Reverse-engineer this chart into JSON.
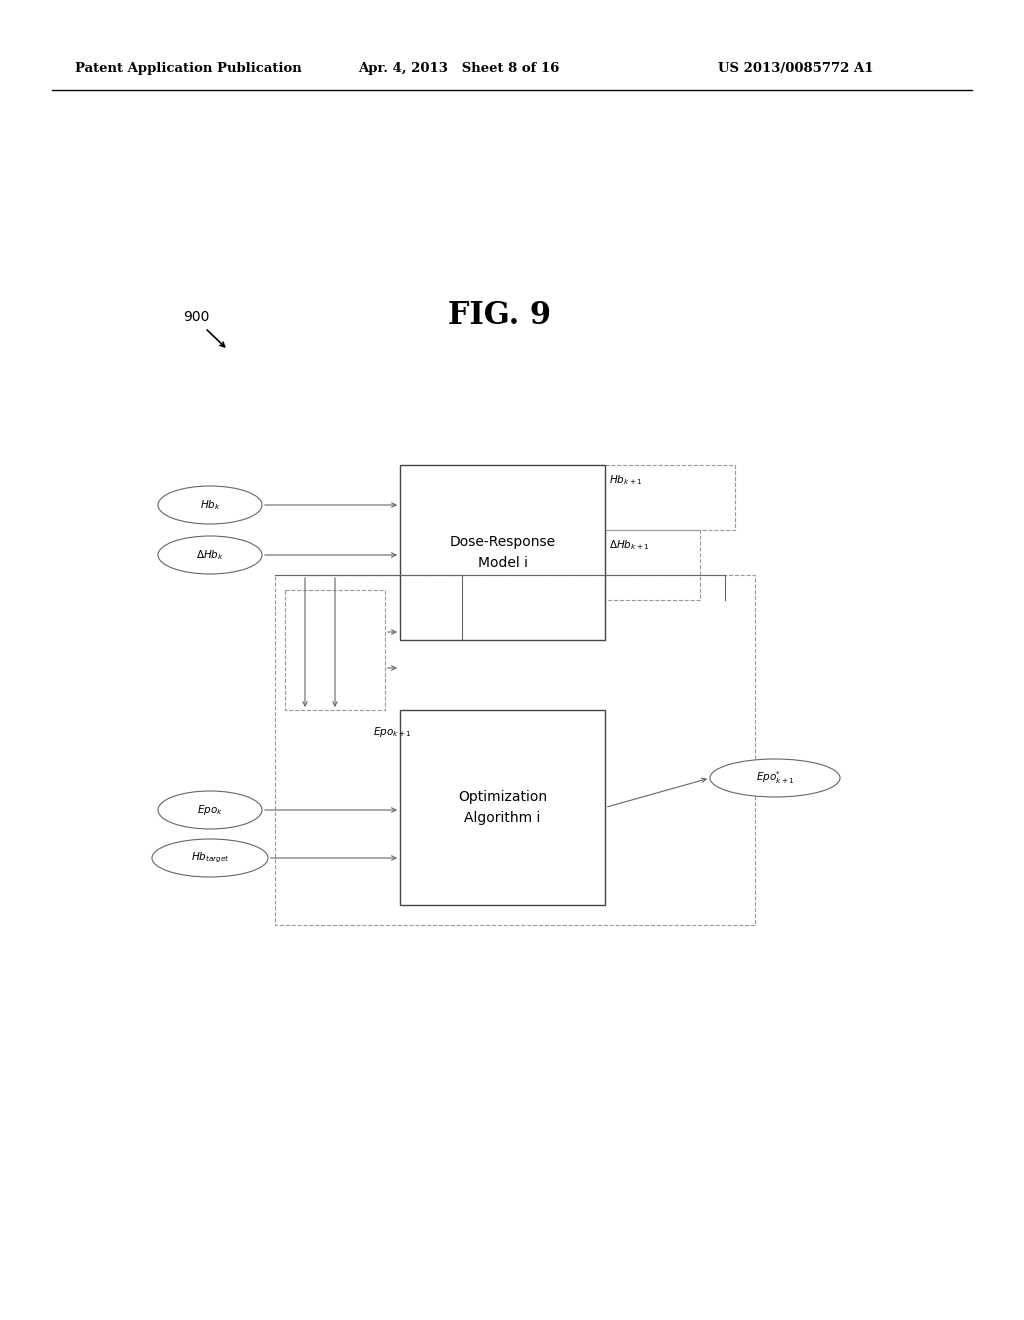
{
  "header_left": "Patent Application Publication",
  "header_mid": "Apr. 4, 2013   Sheet 8 of 16",
  "header_right": "US 2013/0085772 A1",
  "fig_label": "FIG. 9",
  "ref_number": "900",
  "bg_color": "#ffffff",
  "lw_solid": 1.0,
  "lw_dash": 0.8,
  "lw_arrow": 0.8,
  "colors": {
    "line": "#888888",
    "box": "#555555",
    "text": "#000000"
  }
}
